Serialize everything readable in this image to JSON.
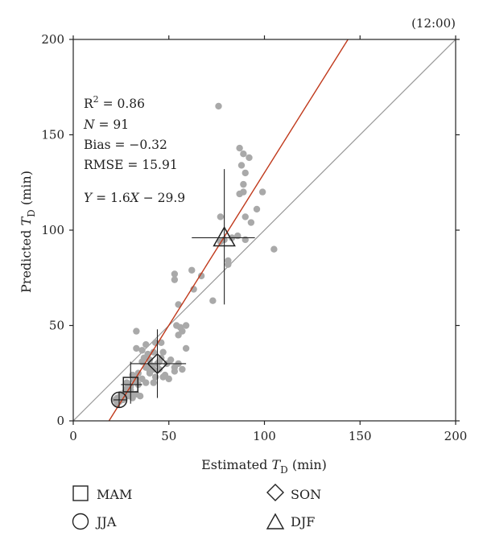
{
  "chart_data": {
    "type": "scatter",
    "time_label": "(12:00)",
    "xlabel": {
      "prefix": "Estimated ",
      "var": "T",
      "sub": "D",
      "suffix": " (min)"
    },
    "ylabel": {
      "prefix": "Predicted ",
      "var": "T",
      "sub": "D",
      "suffix": " (min)"
    },
    "xlim": [
      0,
      200
    ],
    "ylim": [
      0,
      200
    ],
    "xticks": [
      0,
      50,
      100,
      150,
      200
    ],
    "yticks": [
      0,
      50,
      100,
      150,
      200
    ],
    "tick_labels_x": [
      "0",
      "50",
      "100",
      "150",
      "200"
    ],
    "tick_labels_y": [
      "0",
      "50",
      "100",
      "150",
      "200"
    ],
    "stats": {
      "r2_prefix": "R",
      "r2_sup": "2",
      "r2_value": " = 0.86",
      "n_var": "N",
      "n_value": " = 91",
      "bias": "Bias = −0.32",
      "rmse": "RMSE = 15.91",
      "eq_y": "Y",
      "eq_mid": " = 1.6",
      "eq_x": "X",
      "eq_tail": " − 29.9"
    },
    "regression": {
      "slope": 1.6,
      "intercept": -29.9,
      "color": "#c0391b"
    },
    "identity_line_color": "#999999",
    "point_color": "#a9a9a9",
    "points": [
      [
        76,
        165
      ],
      [
        87,
        143
      ],
      [
        89,
        140
      ],
      [
        92,
        138
      ],
      [
        88,
        134
      ],
      [
        90,
        130
      ],
      [
        89,
        124
      ],
      [
        89,
        120
      ],
      [
        87,
        119
      ],
      [
        99,
        120
      ],
      [
        96,
        111
      ],
      [
        93,
        104
      ],
      [
        77,
        107
      ],
      [
        90,
        107
      ],
      [
        86,
        97
      ],
      [
        90,
        95
      ],
      [
        77,
        94
      ],
      [
        79,
        95
      ],
      [
        83,
        96
      ],
      [
        105,
        90
      ],
      [
        81,
        84
      ],
      [
        81,
        82
      ],
      [
        62,
        79
      ],
      [
        53,
        77
      ],
      [
        67,
        76
      ],
      [
        53,
        74
      ],
      [
        63,
        69
      ],
      [
        73,
        63
      ],
      [
        55,
        61
      ],
      [
        54,
        50
      ],
      [
        56,
        49
      ],
      [
        59,
        50
      ],
      [
        57,
        47
      ],
      [
        55,
        45
      ],
      [
        33,
        47
      ],
      [
        59,
        38
      ],
      [
        46,
        41
      ],
      [
        43,
        41
      ],
      [
        38,
        40
      ],
      [
        33,
        38
      ],
      [
        36,
        37
      ],
      [
        42,
        36
      ],
      [
        47,
        36
      ],
      [
        40,
        32
      ],
      [
        36,
        31
      ],
      [
        44,
        30
      ],
      [
        49,
        30
      ],
      [
        53,
        28
      ],
      [
        38,
        28
      ],
      [
        57,
        27
      ],
      [
        53,
        26
      ],
      [
        40,
        25
      ],
      [
        43,
        23
      ],
      [
        47,
        23
      ],
      [
        36,
        22
      ],
      [
        38,
        20
      ],
      [
        42,
        20
      ],
      [
        32,
        21
      ],
      [
        34,
        19
      ],
      [
        30,
        18
      ],
      [
        28,
        20
      ],
      [
        27,
        15
      ],
      [
        30,
        16
      ],
      [
        29,
        13
      ],
      [
        25,
        14
      ],
      [
        23,
        12
      ],
      [
        22,
        11
      ],
      [
        24,
        10
      ],
      [
        23,
        9
      ],
      [
        26,
        11
      ],
      [
        31,
        12
      ],
      [
        33,
        14
      ],
      [
        35,
        13
      ],
      [
        40,
        26
      ],
      [
        45,
        27
      ],
      [
        48,
        24
      ],
      [
        50,
        22
      ],
      [
        37,
        33
      ],
      [
        41,
        29
      ],
      [
        45,
        31
      ],
      [
        34,
        25
      ],
      [
        31,
        24
      ],
      [
        46,
        33
      ],
      [
        39,
        35
      ],
      [
        28,
        17
      ],
      [
        26,
        13
      ],
      [
        33,
        22
      ],
      [
        42,
        27
      ],
      [
        51,
        32
      ],
      [
        55,
        30
      ],
      [
        30,
        14
      ]
    ],
    "seasons": [
      {
        "name": "MAM",
        "marker": "square",
        "x": 30,
        "y": 19,
        "xerr": [
          25,
          36
        ],
        "yerr": [
          9,
          31
        ]
      },
      {
        "name": "JJA",
        "marker": "circle",
        "x": 24,
        "y": 11,
        "xerr": [
          21,
          28
        ],
        "yerr": [
          7,
          15
        ]
      },
      {
        "name": "SON",
        "marker": "diamond",
        "x": 44,
        "y": 30,
        "xerr": [
          30,
          59
        ],
        "yerr": [
          12,
          48
        ]
      },
      {
        "name": "DJF",
        "marker": "triangle",
        "x": 79,
        "y": 96,
        "xerr": [
          62,
          95
        ],
        "yerr": [
          61,
          132
        ]
      }
    ]
  }
}
